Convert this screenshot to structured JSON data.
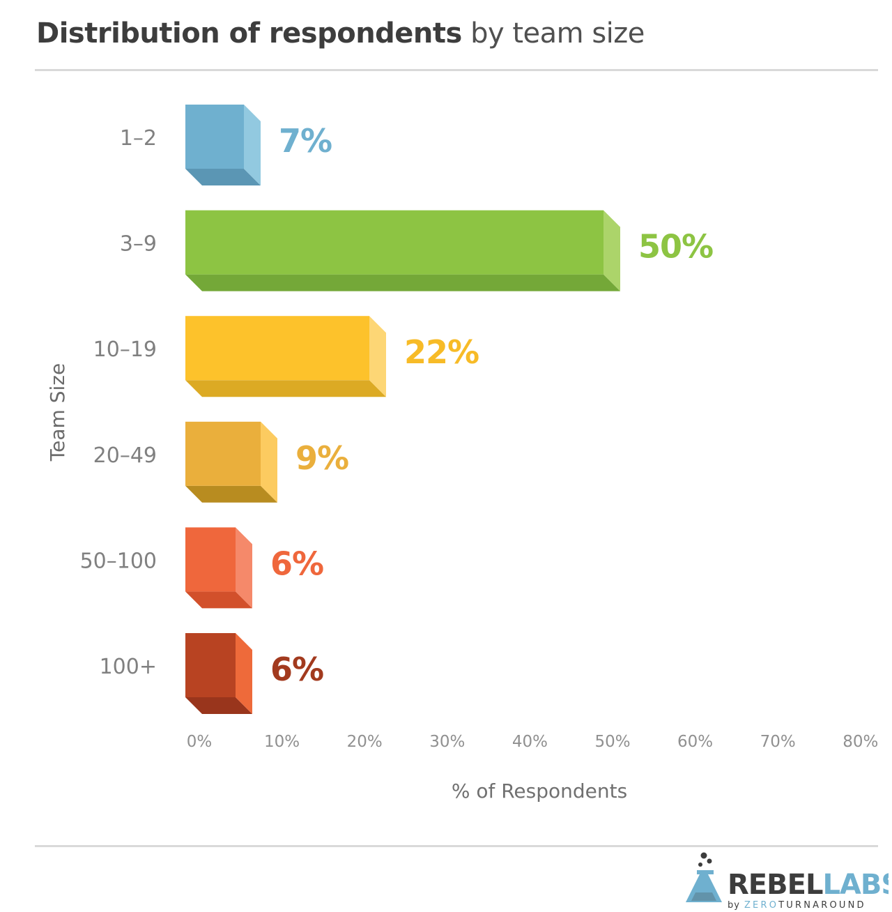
{
  "title": {
    "bold": "Distribution of respondents",
    "light": "by team size"
  },
  "chart_data": {
    "type": "bar",
    "orientation": "horizontal",
    "categories": [
      "1–2",
      "3–9",
      "10–19",
      "20–49",
      "50–100",
      "100+"
    ],
    "values": [
      7,
      50,
      22,
      9,
      6,
      6
    ],
    "value_labels": [
      "7%",
      "50%",
      "22%",
      "9%",
      "6%",
      "6%"
    ],
    "xlabel": "% of Respondents",
    "ylabel": "Team Size",
    "xlim": [
      0,
      80
    ],
    "xticks": [
      "0%",
      "10%",
      "20%",
      "30%",
      "40%",
      "50%",
      "60%",
      "70%",
      "80%"
    ],
    "grid": false,
    "colors": [
      {
        "front": "#6fb0cf",
        "side": "#92c9e0",
        "bottom": "#5b96b4",
        "label": "#6fb0cf"
      },
      {
        "front": "#8dc443",
        "side": "#acd46a",
        "bottom": "#74a838",
        "label": "#8dc443"
      },
      {
        "front": "#fdc22b",
        "side": "#fdd675",
        "bottom": "#dcaa24",
        "label": "#f7bb27"
      },
      {
        "front": "#eaaf3c",
        "side": "#fccb60",
        "bottom": "#b88c20",
        "label": "#eaaf3c"
      },
      {
        "front": "#ef673c",
        "side": "#f5896a",
        "bottom": "#d2502b",
        "label": "#ef673c"
      },
      {
        "front": "#b84322",
        "side": "#ee6a3a",
        "bottom": "#99351c",
        "label": "#a23a1e"
      }
    ]
  },
  "logo": {
    "rebel": "REBEL",
    "labs": "LABS",
    "by": "by",
    "zero": "ZERO",
    "turnaround": "TURNAROUND"
  },
  "theme": {
    "text": "#404040",
    "tick": "#808080",
    "rule": "#d9d9d9",
    "logo_blue": "#6fb0cf",
    "logo_dark": "#3d3d3d"
  }
}
